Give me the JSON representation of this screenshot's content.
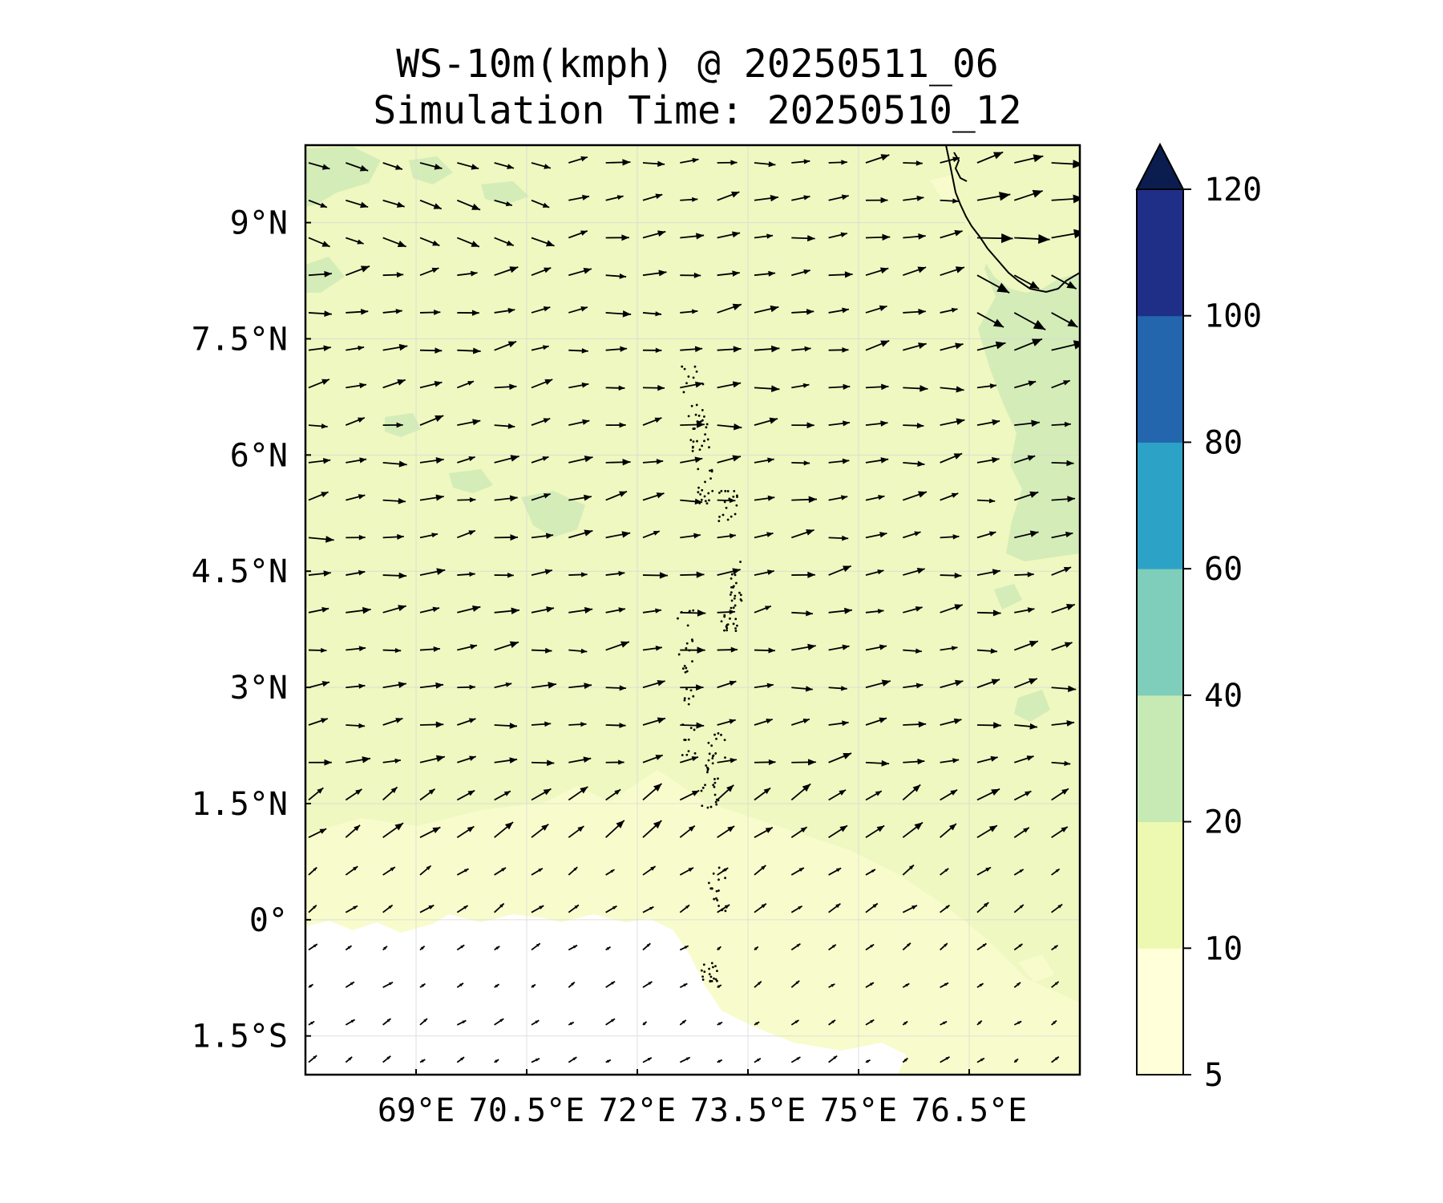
{
  "title": {
    "line1": "WS-10m(kmph) @ 20250511_06",
    "line2": "Simulation Time: 20250510_12"
  },
  "map": {
    "lon_range": [
      67.5,
      78.0
    ],
    "lat_range": [
      -2.0,
      10.0
    ],
    "lon_ticks": [
      {
        "value": 69.0,
        "label": "69°E"
      },
      {
        "value": 70.5,
        "label": "70.5°E"
      },
      {
        "value": 72.0,
        "label": "72°E"
      },
      {
        "value": 73.5,
        "label": "73.5°E"
      },
      {
        "value": 75.0,
        "label": "75°E"
      },
      {
        "value": 76.5,
        "label": "76.5°E"
      }
    ],
    "lat_ticks": [
      {
        "value": 9.0,
        "label": "9°N"
      },
      {
        "value": 7.5,
        "label": "7.5°N"
      },
      {
        "value": 6.0,
        "label": "6°N"
      },
      {
        "value": 4.5,
        "label": "4.5°N"
      },
      {
        "value": 3.0,
        "label": "3°N"
      },
      {
        "value": 1.5,
        "label": "1.5°N"
      },
      {
        "value": 0.0,
        "label": "0°"
      },
      {
        "value": -1.5,
        "label": "1.5°S"
      }
    ],
    "gridlines": true,
    "wind_vectors": "arrow field, predominantly eastward to east-northeastward",
    "coastlines": [
      "southwest India / Kerala coast (top-right)",
      "Maldives atolls (center)"
    ]
  },
  "colorbar": {
    "levels": [
      5,
      10,
      20,
      40,
      60,
      80,
      100,
      120
    ],
    "labels": [
      "5",
      "10",
      "20",
      "40",
      "60",
      "80",
      "100",
      "120"
    ],
    "colors": [
      "#ffffd9",
      "#edf8b1",
      "#c7e9b4",
      "#7fcdbb",
      "#2ca3c6",
      "#2366ad",
      "#1f2f88"
    ],
    "extend_color": "#0b1d4f",
    "extend": "max"
  },
  "colors": {
    "white_area": "#ffffff",
    "light_band": "#f8fccc",
    "main_field": "#eef8c0",
    "green_patch": "#d4ecb8",
    "arrow": "#000000"
  }
}
